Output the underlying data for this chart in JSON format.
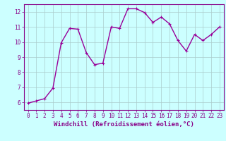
{
  "x": [
    0,
    1,
    2,
    3,
    4,
    5,
    6,
    7,
    8,
    9,
    10,
    11,
    12,
    13,
    14,
    15,
    16,
    17,
    18,
    19,
    20,
    21,
    22,
    23
  ],
  "y": [
    5.95,
    6.1,
    6.25,
    6.95,
    9.95,
    10.9,
    10.85,
    9.3,
    8.5,
    8.6,
    11.0,
    10.9,
    12.2,
    12.2,
    11.95,
    11.3,
    11.65,
    11.2,
    10.1,
    9.4,
    10.5,
    10.1,
    10.5,
    11.0
  ],
  "line_color": "#990099",
  "marker": "+",
  "marker_size": 3,
  "background_color": "#ccffff",
  "grid_color": "#aacccc",
  "axis_color": "#880088",
  "xlabel": "Windchill (Refroidissement éolien,°C)",
  "xlabel_fontsize": 6.5,
  "xlim": [
    -0.5,
    23.5
  ],
  "ylim": [
    5.5,
    12.5
  ],
  "yticks": [
    6,
    7,
    8,
    9,
    10,
    11,
    12
  ],
  "xticks": [
    0,
    1,
    2,
    3,
    4,
    5,
    6,
    7,
    8,
    9,
    10,
    11,
    12,
    13,
    14,
    15,
    16,
    17,
    18,
    19,
    20,
    21,
    22,
    23
  ],
  "tick_fontsize": 5.5,
  "line_width": 1.0
}
